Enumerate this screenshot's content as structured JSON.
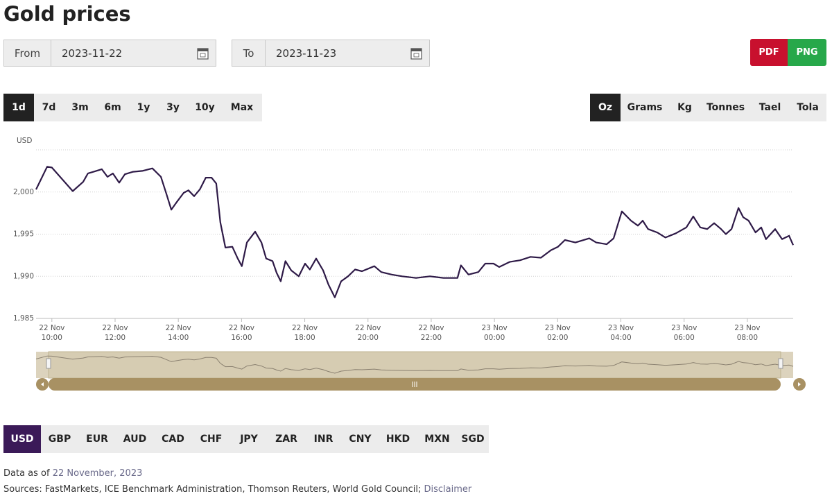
{
  "header": {
    "title": "Gold prices"
  },
  "date_range": {
    "from_label": "From",
    "from": "2023-11-22",
    "to_label": "To",
    "to": "2023-11-23"
  },
  "export": [
    "PDF",
    "PNG"
  ],
  "periods": [
    "1d",
    "7d",
    "3m",
    "6m",
    "1y",
    "3y",
    "10y",
    "Max"
  ],
  "units": [
    "Oz",
    "Grams",
    "Kg",
    "Tonnes",
    "Tael",
    "Tola"
  ],
  "currencies": [
    "USD",
    "GBP",
    "EUR",
    "AUD",
    "CAD",
    "CHF",
    "JPY",
    "ZAR",
    "INR",
    "CNY",
    "HKD",
    "MXN",
    "SGD"
  ],
  "chart_data": {
    "type": "line",
    "y_axis_label": "USD",
    "color": "#2e1a47",
    "grid": true,
    "x": [
      9.5,
      9.85,
      10.0,
      10.66,
      10.99,
      11.14,
      11.32,
      11.58,
      11.76,
      11.93,
      12.13,
      12.31,
      12.57,
      12.86,
      13.18,
      13.45,
      13.62,
      13.78,
      13.95,
      14.17,
      14.32,
      14.5,
      14.68,
      14.87,
      15.05,
      15.2,
      15.33,
      15.49,
      15.71,
      15.88,
      16.01,
      16.17,
      16.43,
      16.63,
      16.78,
      16.98,
      17.11,
      17.24,
      17.39,
      17.57,
      17.81,
      18.01,
      18.16,
      18.36,
      18.58,
      18.75,
      18.95,
      19.15,
      19.37,
      19.59,
      19.81,
      20.2,
      20.42,
      20.75,
      21.08,
      21.52,
      21.96,
      22.39,
      22.83,
      22.94,
      23.18,
      23.49,
      23.71,
      23.97,
      24.15,
      24.48,
      24.81,
      25.14,
      25.47,
      25.79,
      26.01,
      26.23,
      26.56,
      27.0,
      27.22,
      27.55,
      27.77,
      28.03,
      28.32,
      28.54,
      28.69,
      28.86,
      29.15,
      29.41,
      29.74,
      30.07,
      30.29,
      30.51,
      30.73,
      30.95,
      31.17,
      31.32,
      31.5,
      31.72,
      31.87,
      32.04,
      32.26,
      32.44,
      32.59,
      32.88,
      33.1,
      33.32,
      33.45
    ],
    "values": [
      2000.3,
      2003.0,
      2002.9,
      2000.1,
      2001.2,
      2002.2,
      2002.4,
      2002.7,
      2001.8,
      2002.2,
      2001.1,
      2002.1,
      2002.4,
      2002.5,
      2002.8,
      2001.8,
      1999.8,
      1997.9,
      1998.8,
      1999.9,
      2000.2,
      1999.5,
      2000.3,
      2001.7,
      2001.7,
      2001.0,
      1996.4,
      1993.4,
      1993.5,
      1992.1,
      1991.2,
      1994.0,
      1995.3,
      1994.0,
      1992.1,
      1991.8,
      1990.4,
      1989.4,
      1991.8,
      1990.7,
      1990.0,
      1991.5,
      1990.8,
      1992.1,
      1990.7,
      1989.0,
      1987.5,
      1989.4,
      1990.0,
      1990.8,
      1990.6,
      1991.2,
      1990.5,
      1990.2,
      1990.0,
      1989.8,
      1990.0,
      1989.8,
      1989.8,
      1991.3,
      1990.2,
      1990.5,
      1991.5,
      1991.5,
      1991.1,
      1991.7,
      1991.9,
      1992.3,
      1992.2,
      1993.1,
      1993.5,
      1994.3,
      1994.0,
      1994.5,
      1994.0,
      1993.8,
      1994.5,
      1997.7,
      1996.6,
      1996.0,
      1996.6,
      1995.6,
      1995.2,
      1994.6,
      1995.1,
      1995.8,
      1997.1,
      1995.8,
      1995.6,
      1996.3,
      1995.6,
      1995.0,
      1995.6,
      1998.1,
      1997.0,
      1996.6,
      1995.2,
      1995.8,
      1994.4,
      1995.6,
      1994.4,
      1994.8,
      1993.7
    ],
    "xlim": [
      9.5,
      33.45
    ],
    "xticks": [
      {
        "value": 10,
        "label": [
          "22 Nov",
          "10:00"
        ]
      },
      {
        "value": 12,
        "label": [
          "22 Nov",
          "12:00"
        ]
      },
      {
        "value": 14,
        "label": [
          "22 Nov",
          "14:00"
        ]
      },
      {
        "value": 16,
        "label": [
          "22 Nov",
          "16:00"
        ]
      },
      {
        "value": 18,
        "label": [
          "22 Nov",
          "18:00"
        ]
      },
      {
        "value": 20,
        "label": [
          "22 Nov",
          "20:00"
        ]
      },
      {
        "value": 22,
        "label": [
          "22 Nov",
          "22:00"
        ]
      },
      {
        "value": 24,
        "label": [
          "23 Nov",
          "00:00"
        ]
      },
      {
        "value": 26,
        "label": [
          "23 Nov",
          "02:00"
        ]
      },
      {
        "value": 28,
        "label": [
          "23 Nov",
          "04:00"
        ]
      },
      {
        "value": 30,
        "label": [
          "23 Nov",
          "06:00"
        ]
      },
      {
        "value": 32,
        "label": [
          "23 Nov",
          "08:00"
        ]
      }
    ],
    "ylim": [
      1985,
      2005
    ],
    "yticks": [
      {
        "value": 2000,
        "label": "2,000"
      },
      {
        "value": 1995,
        "label": "1,995"
      },
      {
        "value": 1990,
        "label": "1,990"
      },
      {
        "value": 1985,
        "label": "1,985"
      }
    ]
  },
  "footer": {
    "data_as_of": "Data as of",
    "date": "22 November, 2023",
    "sources": "Sources: FastMarkets, ICE Benchmark Administration, Thomson Reuters, World Gold Council;",
    "disclaimer": "Disclaimer"
  }
}
